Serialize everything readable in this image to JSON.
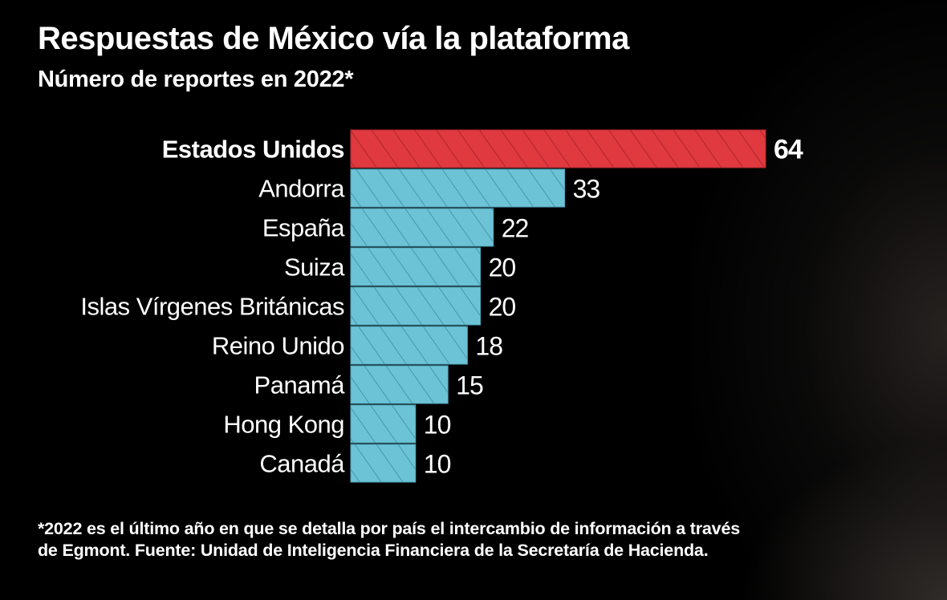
{
  "header": {
    "title": "Respuestas de México vía la plataforma",
    "subtitle": "Número de reportes en 2022*"
  },
  "footnote": {
    "line1": "*2022 es el último año en que se detalla por país el intercambio de información a través",
    "line2": "de Egmont. Fuente: Unidad de Inteligencia Financiera de la Secretaría de Hacienda."
  },
  "colors": {
    "background": "#000000",
    "highlight_bar": "#e0393f",
    "default_bar": "#6cc3d6",
    "hatch_on_highlight": "#9e2228",
    "hatch_on_default": "#3f8c9c",
    "text": "#ffffff"
  },
  "chart_data": {
    "type": "bar",
    "orientation": "horizontal",
    "title": "Respuestas de México vía la plataforma",
    "subtitle": "Número de reportes en 2022*",
    "xlabel": "",
    "ylabel": "",
    "xlim": [
      0,
      64
    ],
    "grid": false,
    "legend": "none",
    "pattern": "diagonal-hatch",
    "categories": [
      "Estados Unidos",
      "Andorra",
      "España",
      "Suiza",
      "Islas Vírgenes Británicas",
      "Reino Unido",
      "Panamá",
      "Hong Kong",
      "Canadá"
    ],
    "values": [
      64,
      33,
      22,
      20,
      20,
      18,
      15,
      10,
      10
    ],
    "highlighted": [
      "Estados Unidos"
    ],
    "data_labels": [
      "64",
      "33",
      "22",
      "20",
      "20",
      "18",
      "15",
      "10",
      "10"
    ]
  }
}
